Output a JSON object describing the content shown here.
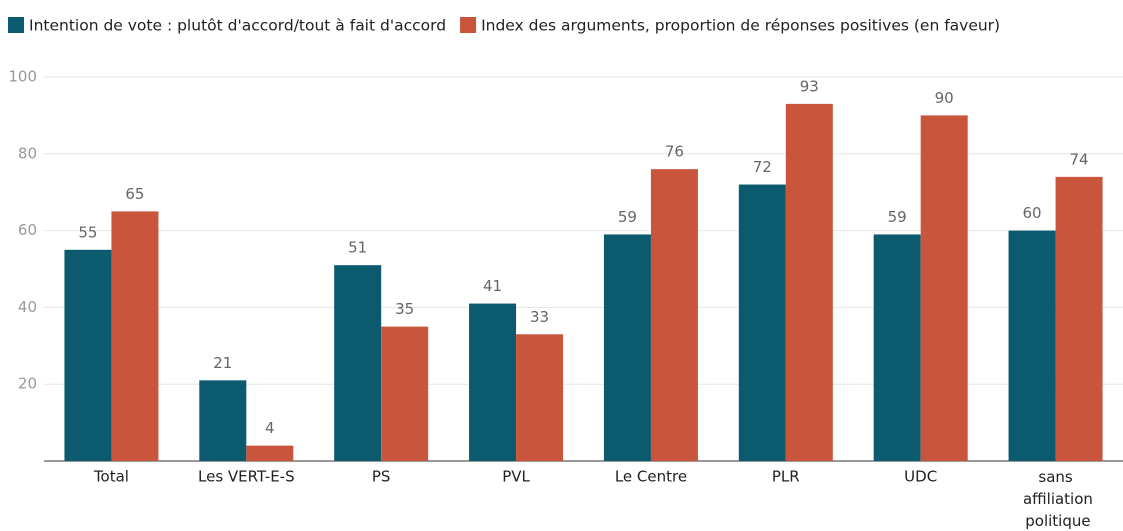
{
  "chart_data": {
    "type": "bar",
    "categories": [
      "Total",
      "Les VERT-E-S",
      "PS",
      "PVL",
      "Le Centre",
      "PLR",
      "UDC",
      "sans affiliation politique"
    ],
    "series": [
      {
        "name": "Intention de vote : plutôt d'accord/tout à fait d'accord",
        "color": "#0b5a6e",
        "values": [
          55,
          21,
          51,
          41,
          59,
          72,
          59,
          60
        ]
      },
      {
        "name": "Index des arguments, proportion de réponses positives (en faveur)",
        "color": "#c9553c",
        "values": [
          65,
          4,
          35,
          33,
          76,
          93,
          90,
          74
        ]
      }
    ],
    "ylim": [
      0,
      100
    ],
    "yticks": [
      20,
      40,
      60,
      80,
      100
    ],
    "grid": true
  }
}
